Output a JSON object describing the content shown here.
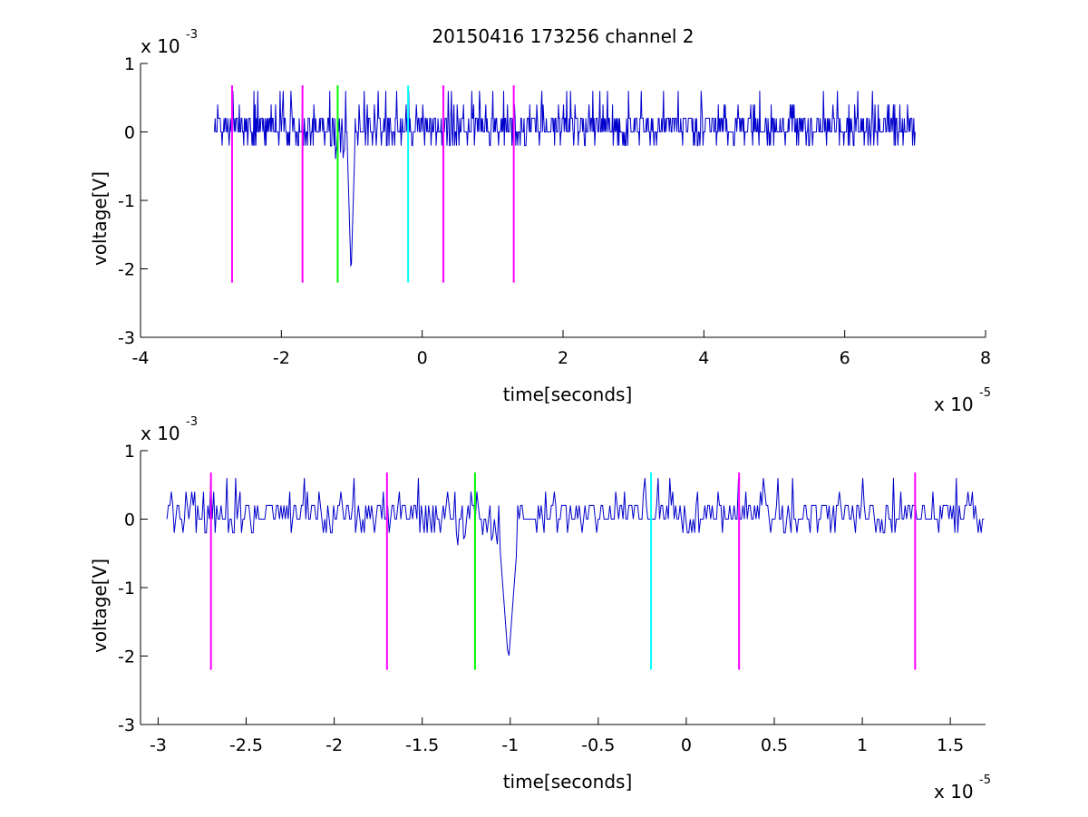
{
  "chart_data": [
    {
      "type": "line",
      "title": "20150416 173256 channel 2",
      "xlabel": "time[seconds]",
      "ylabel": "voltage[V]",
      "x_multiplier": {
        "base": "x 10",
        "exponent": "-5"
      },
      "y_multiplier": {
        "base": "x 10",
        "exponent": "-3"
      },
      "xlim": [
        -4,
        8
      ],
      "ylim": [
        -3,
        1
      ],
      "xticks": [
        -4,
        -2,
        0,
        2,
        4,
        6,
        8
      ],
      "yticks": [
        -3,
        -2,
        -1,
        0,
        1
      ],
      "xtick_labels": [
        "-4",
        "-2",
        "0",
        "2",
        "4",
        "6",
        "8"
      ],
      "ytick_labels": [
        "-3",
        "-2",
        "-1",
        "0",
        "1"
      ],
      "grid": false,
      "signal": {
        "color": "#0000cc",
        "x_start": -2.95,
        "x_end": 7.0,
        "noise_levels": [
          -0.2,
          0.0,
          0.2,
          0.4
        ],
        "spike": {
          "x": -1.0,
          "min": -2.0
        },
        "dip_region": [
          -1.3,
          -1.05
        ]
      },
      "markers": [
        {
          "x": -2.7,
          "color": "#ff00ff",
          "ymin": -2.2,
          "ymax": 0.68
        },
        {
          "x": -1.7,
          "color": "#ff00ff",
          "ymin": -2.2,
          "ymax": 0.68
        },
        {
          "x": -1.2,
          "color": "#00ff00",
          "ymin": -2.2,
          "ymax": 0.68
        },
        {
          "x": -0.2,
          "color": "#00ffff",
          "ymin": -2.2,
          "ymax": 0.68
        },
        {
          "x": 0.3,
          "color": "#ff00ff",
          "ymin": -2.2,
          "ymax": 0.68
        },
        {
          "x": 1.3,
          "color": "#ff00ff",
          "ymin": -2.2,
          "ymax": 0.68
        }
      ]
    },
    {
      "type": "line",
      "title": "",
      "xlabel": "time[seconds]",
      "ylabel": "voltage[V]",
      "x_multiplier": {
        "base": "x 10",
        "exponent": "-5"
      },
      "y_multiplier": {
        "base": "x 10",
        "exponent": "-3"
      },
      "xlim": [
        -3.1,
        1.7
      ],
      "ylim": [
        -3,
        1
      ],
      "xticks": [
        -3,
        -2.5,
        -2,
        -1.5,
        -1,
        -0.5,
        0,
        0.5,
        1,
        1.5
      ],
      "yticks": [
        -3,
        -2,
        -1,
        0,
        1
      ],
      "xtick_labels": [
        "-3",
        "-2.5",
        "-2",
        "-1.5",
        "-1",
        "-0.5",
        "0",
        "0.5",
        "1",
        "1.5"
      ],
      "ytick_labels": [
        "-3",
        "-2",
        "-1",
        "0",
        "1"
      ],
      "grid": false,
      "signal": {
        "color": "#0000cc",
        "x_start": -2.95,
        "x_end": 1.7,
        "noise_levels": [
          -0.2,
          0.0,
          0.2,
          0.4
        ],
        "spike": {
          "x": -1.0,
          "min": -2.0
        },
        "dip_region": [
          -1.3,
          -1.05
        ]
      },
      "markers": [
        {
          "x": -2.7,
          "color": "#ff00ff",
          "ymin": -2.2,
          "ymax": 0.68
        },
        {
          "x": -1.7,
          "color": "#ff00ff",
          "ymin": -2.2,
          "ymax": 0.68
        },
        {
          "x": -1.2,
          "color": "#00ff00",
          "ymin": -2.2,
          "ymax": 0.68
        },
        {
          "x": -0.2,
          "color": "#00ffff",
          "ymin": -2.2,
          "ymax": 0.68
        },
        {
          "x": 0.3,
          "color": "#ff00ff",
          "ymin": -2.2,
          "ymax": 0.68
        },
        {
          "x": 1.3,
          "color": "#ff00ff",
          "ymin": -2.2,
          "ymax": 0.68
        }
      ]
    }
  ]
}
